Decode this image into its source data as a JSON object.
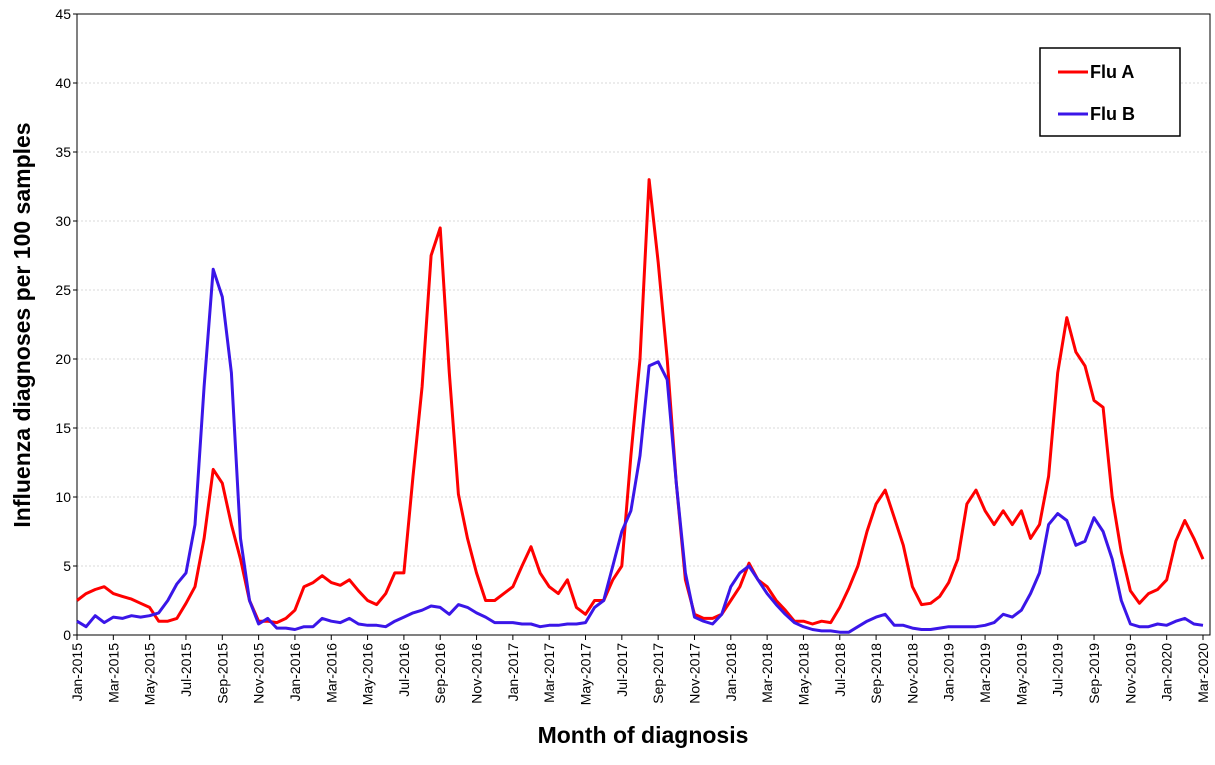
{
  "chart_data": {
    "type": "line",
    "x_label": "Month of diagnosis",
    "y_label": "Influenza diagnoses per 100 samples",
    "categories": [
      "Jan-2015",
      null,
      null,
      null,
      "Mar-2015",
      null,
      null,
      null,
      "May-2015",
      null,
      null,
      null,
      "Jul-2015",
      null,
      null,
      null,
      "Sep-2015",
      null,
      null,
      null,
      "Nov-2015",
      null,
      null,
      null,
      "Jan-2016",
      null,
      null,
      null,
      "Mar-2016",
      null,
      null,
      null,
      "May-2016",
      null,
      null,
      null,
      "Jul-2016",
      null,
      null,
      null,
      "Sep-2016",
      null,
      null,
      null,
      "Nov-2016",
      null,
      null,
      null,
      "Jan-2017",
      null,
      null,
      null,
      "Mar-2017",
      null,
      null,
      null,
      "May-2017",
      null,
      null,
      null,
      "Jul-2017",
      null,
      null,
      null,
      "Sep-2017",
      null,
      null,
      null,
      "Nov-2017",
      null,
      null,
      null,
      "Jan-2018",
      null,
      null,
      null,
      "Mar-2018",
      null,
      null,
      null,
      "May-2018",
      null,
      null,
      null,
      "Jul-2018",
      null,
      null,
      null,
      "Sep-2018",
      null,
      null,
      null,
      "Nov-2018",
      null,
      null,
      null,
      "Jan-2019",
      null,
      null,
      null,
      "Mar-2019",
      null,
      null,
      null,
      "May-2019",
      null,
      null,
      null,
      "Jul-2019",
      null,
      null,
      null,
      "Sep-2019",
      null,
      null,
      null,
      "Nov-2019",
      null,
      null,
      null,
      "Jan-2020",
      null,
      null,
      null,
      "Mar-2020"
    ],
    "series": [
      {
        "name": "Flu A",
        "color": "#ff0000",
        "values": [
          2.5,
          3.0,
          3.3,
          3.5,
          3.0,
          2.8,
          2.6,
          2.3,
          2.0,
          1.0,
          1.0,
          1.2,
          2.3,
          3.5,
          7.0,
          12.0,
          11.0,
          8.0,
          5.5,
          2.5,
          1.0,
          1.0,
          0.9,
          1.2,
          1.8,
          3.5,
          3.8,
          4.3,
          3.8,
          3.6,
          4.0,
          3.2,
          2.5,
          2.2,
          3.0,
          4.5,
          4.5,
          11.5,
          18,
          27.5,
          29.5,
          19,
          10.2,
          7,
          4.5,
          2.5,
          2.5,
          3.0,
          3.5,
          5.0,
          6.4,
          4.5,
          3.5,
          3.0,
          4.0,
          2.0,
          1.5,
          2.5,
          2.5,
          4.0,
          5.0,
          13,
          20,
          33,
          27,
          20,
          11,
          4,
          1.5,
          1.2,
          1.2,
          1.5,
          2.5,
          3.5,
          5.2,
          4.0,
          3.5,
          2.5,
          1.8,
          1.0,
          1.0,
          0.8,
          1.0,
          0.9,
          2.0,
          3.4,
          5.0,
          7.5,
          9.5,
          10.5,
          8.5,
          6.5,
          3.5,
          2.2,
          2.3,
          2.8,
          3.8,
          5.5,
          9.5,
          10.5,
          9.0,
          8.0,
          9.0,
          8.0,
          9.0,
          7.0,
          8.0,
          11.5,
          19,
          23,
          20.5,
          19.5,
          17,
          16.5,
          10,
          6,
          3.2,
          2.3,
          3.0,
          3.3,
          4.0,
          6.8,
          8.3,
          7.0,
          5.5
        ]
      },
      {
        "name": "Flu B",
        "color": "#3a16e8",
        "values": [
          1.0,
          0.6,
          1.4,
          0.9,
          1.3,
          1.2,
          1.4,
          1.3,
          1.4,
          1.6,
          2.5,
          3.7,
          4.5,
          8.0,
          18,
          26.5,
          24.5,
          19,
          7.0,
          2.5,
          0.8,
          1.2,
          0.5,
          0.5,
          0.4,
          0.6,
          0.6,
          1.2,
          1.0,
          0.9,
          1.2,
          0.8,
          0.7,
          0.7,
          0.6,
          1.0,
          1.3,
          1.6,
          1.8,
          2.1,
          2.0,
          1.5,
          2.2,
          2.0,
          1.6,
          1.3,
          0.9,
          0.9,
          0.9,
          0.8,
          0.8,
          0.6,
          0.7,
          0.7,
          0.8,
          0.8,
          0.9,
          2.0,
          2.5,
          5.0,
          7.5,
          9.0,
          13,
          19.5,
          19.8,
          18.5,
          11,
          4.5,
          1.3,
          1.0,
          0.8,
          1.5,
          3.5,
          4.5,
          5.0,
          4.0,
          3.0,
          2.2,
          1.5,
          0.9,
          0.6,
          0.4,
          0.3,
          0.3,
          0.2,
          0.2,
          0.6,
          1.0,
          1.3,
          1.5,
          0.7,
          0.7,
          0.5,
          0.4,
          0.4,
          0.5,
          0.6,
          0.6,
          0.6,
          0.6,
          0.7,
          0.9,
          1.5,
          1.3,
          1.8,
          3.0,
          4.5,
          8.0,
          8.8,
          8.3,
          6.5,
          6.8,
          8.5,
          7.5,
          5.5,
          2.5,
          0.8,
          0.6,
          0.6,
          0.8,
          0.7,
          1.0,
          1.2,
          0.8,
          0.7
        ]
      }
    ],
    "ylim": [
      0,
      45
    ],
    "yticks": [
      0,
      5,
      10,
      15,
      20,
      25,
      30,
      35,
      40,
      45
    ],
    "grid": true,
    "legend": "top-right"
  }
}
